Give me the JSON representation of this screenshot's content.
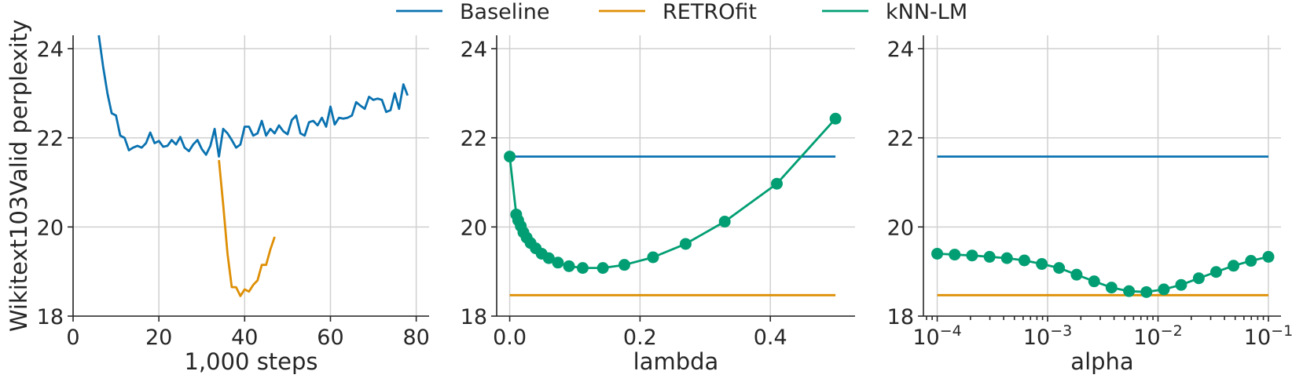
{
  "colors": {
    "baseline": "#0a72b0",
    "retrofit": "#de8f05",
    "knn": "#029e73"
  },
  "legend": [
    {
      "name": "Baseline",
      "color_key": "baseline"
    },
    {
      "name": "RETROfit",
      "color_key": "retrofit"
    },
    {
      "name": "kNN-LM",
      "color_key": "knn"
    }
  ],
  "ylabel": "Wikitext103Valid perplexity",
  "chart_data": [
    {
      "type": "line",
      "xlabel": "1,000 steps",
      "ylabel": "Wikitext103Valid perplexity",
      "xlim": [
        0,
        83
      ],
      "ylim": [
        18,
        24.3
      ],
      "xticks": [
        0,
        20,
        40,
        60,
        80
      ],
      "xtick_labels": [
        "0",
        "20",
        "40",
        "60",
        "80"
      ],
      "yticks": [
        18,
        20,
        22,
        24
      ],
      "ytick_labels": [
        "18",
        "20",
        "22",
        "24"
      ],
      "grid": true,
      "series": [
        {
          "name": "Baseline",
          "color_key": "baseline",
          "markers": false,
          "x": [
            6,
            7,
            8,
            9,
            10,
            11,
            12,
            13,
            14,
            15,
            16,
            17,
            18,
            19,
            20,
            21,
            22,
            23,
            24,
            25,
            26,
            27,
            28,
            29,
            30,
            31,
            32,
            33,
            34,
            35,
            36,
            37,
            38,
            39,
            40,
            41,
            42,
            43,
            44,
            45,
            46,
            47,
            48,
            49,
            50,
            51,
            52,
            53,
            54,
            55,
            56,
            57,
            58,
            59,
            60,
            61,
            62,
            63,
            64,
            65,
            66,
            67,
            68,
            69,
            70,
            71,
            72,
            73,
            74,
            75,
            76,
            77,
            78
          ],
          "y": [
            24.3,
            23.6,
            23.0,
            22.55,
            22.5,
            22.05,
            22.0,
            21.72,
            21.78,
            21.82,
            21.78,
            21.88,
            22.12,
            21.88,
            21.93,
            21.8,
            21.82,
            21.95,
            21.85,
            22.02,
            21.78,
            21.7,
            21.85,
            21.95,
            21.75,
            21.62,
            21.82,
            22.2,
            21.58,
            22.2,
            22.1,
            21.95,
            21.78,
            21.85,
            22.25,
            22.25,
            22.05,
            22.1,
            22.38,
            22.05,
            22.2,
            22.1,
            22.28,
            22.15,
            22.08,
            22.4,
            22.5,
            22.1,
            22.05,
            22.35,
            22.38,
            22.28,
            22.45,
            22.25,
            22.7,
            22.3,
            22.45,
            22.43,
            22.45,
            22.5,
            22.8,
            22.72,
            22.65,
            22.92,
            22.85,
            22.88,
            22.85,
            22.58,
            22.62,
            23.0,
            22.65,
            23.2,
            22.95
          ]
        },
        {
          "name": "RETROfit",
          "color_key": "retrofit",
          "markers": false,
          "x": [
            34,
            35,
            36,
            37,
            38,
            39,
            40,
            41,
            42,
            43,
            44,
            45,
            46,
            47
          ],
          "y": [
            21.5,
            20.5,
            19.4,
            18.65,
            18.65,
            18.45,
            18.6,
            18.55,
            18.7,
            18.8,
            19.15,
            19.15,
            19.5,
            19.78
          ]
        }
      ]
    },
    {
      "type": "line",
      "xlabel": "lambda",
      "xlim": [
        -0.02,
        0.53
      ],
      "ylim": [
        18,
        24.3
      ],
      "xticks": [
        0.0,
        0.2,
        0.4
      ],
      "xtick_labels": [
        "0.0",
        "0.2",
        "0.4"
      ],
      "yticks": [
        18,
        20,
        22,
        24
      ],
      "ytick_labels": [
        "18",
        "20",
        "22",
        "24"
      ],
      "grid": true,
      "series": [
        {
          "name": "Baseline",
          "color_key": "baseline",
          "markers": false,
          "x": [
            0,
            0.5
          ],
          "y": [
            21.58,
            21.58
          ]
        },
        {
          "name": "RETROfit",
          "color_key": "retrofit",
          "markers": false,
          "x": [
            0,
            0.5
          ],
          "y": [
            18.47,
            18.47
          ]
        },
        {
          "name": "kNN-LM",
          "color_key": "knn",
          "markers": true,
          "x": [
            0.0,
            0.01,
            0.013,
            0.017,
            0.021,
            0.026,
            0.032,
            0.04,
            0.049,
            0.06,
            0.074,
            0.091,
            0.112,
            0.143,
            0.176,
            0.22,
            0.27,
            0.33,
            0.41,
            0.5
          ],
          "y": [
            21.58,
            20.28,
            20.15,
            20.02,
            19.88,
            19.76,
            19.64,
            19.52,
            19.4,
            19.3,
            19.2,
            19.12,
            19.08,
            19.08,
            19.15,
            19.32,
            19.62,
            20.12,
            20.97,
            22.43
          ]
        }
      ]
    },
    {
      "type": "line",
      "xlabel": "alpha",
      "xscale": "log",
      "xlim": [
        7.5e-05,
        0.13
      ],
      "ylim": [
        18,
        24.3
      ],
      "xticks": [
        0.0001,
        0.001,
        0.01,
        0.1
      ],
      "xtick_labels": [
        "10^-4",
        "10^-3",
        "10^-2",
        "10^-1"
      ],
      "yticks": [
        18,
        20,
        22,
        24
      ],
      "ytick_labels": [
        "18",
        "20",
        "22",
        "24"
      ],
      "grid": true,
      "series": [
        {
          "name": "Baseline",
          "color_key": "baseline",
          "markers": false,
          "x": [
            0.0001,
            0.1
          ],
          "y": [
            21.58,
            21.58
          ]
        },
        {
          "name": "RETROfit",
          "color_key": "retrofit",
          "markers": false,
          "x": [
            0.0001,
            0.1
          ],
          "y": [
            18.47,
            18.47
          ]
        },
        {
          "name": "kNN-LM",
          "color_key": "knn",
          "markers": true,
          "x": [
            0.0001,
            0.000144,
            0.000207,
            0.000298,
            0.000428,
            0.000616,
            0.000886,
            0.00127,
            0.00183,
            0.00264,
            0.00379,
            0.00546,
            0.00785,
            0.0113,
            0.0162,
            0.0234,
            0.0336,
            0.0483,
            0.0695,
            0.1
          ],
          "y": [
            19.4,
            19.38,
            19.36,
            19.33,
            19.3,
            19.25,
            19.17,
            19.08,
            18.93,
            18.78,
            18.64,
            18.56,
            18.54,
            18.6,
            18.7,
            18.85,
            18.99,
            19.13,
            19.24,
            19.33
          ]
        }
      ]
    }
  ]
}
